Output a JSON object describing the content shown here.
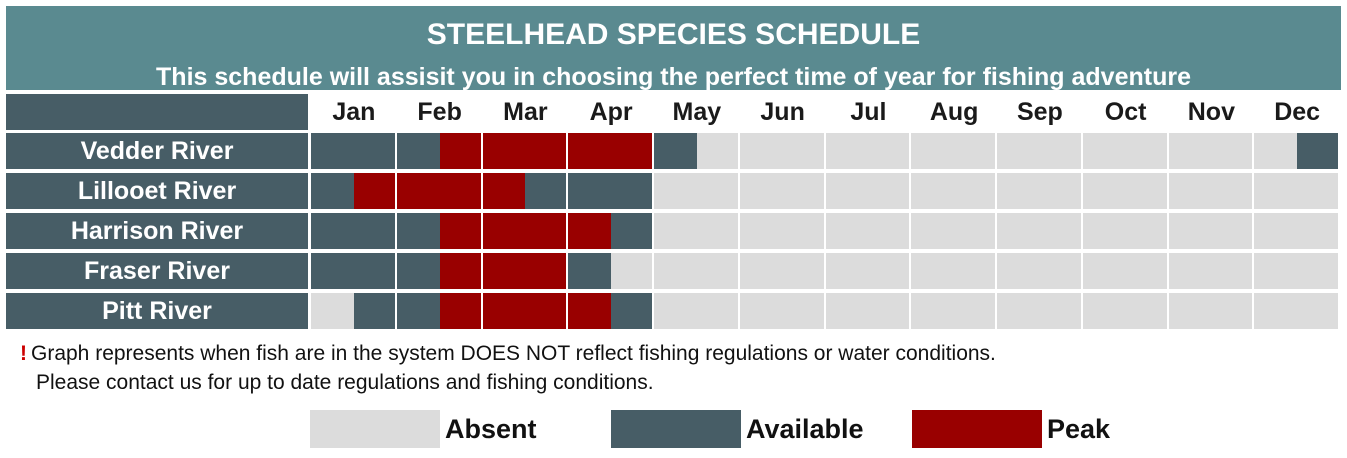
{
  "title": "STEELHEAD SPECIES SCHEDULE",
  "subtitle": "This schedule will assisit you in choosing the perfect time of year for fishing adventure",
  "footnote": {
    "mark": "!",
    "line1": "Graph represents when fish are in the system DOES NOT reflect fishing regulations or water conditions.",
    "line2": "Please contact us for up to date regulations and fishing conditions."
  },
  "colors": {
    "absent": "#dcdcdc",
    "available": "#475d66",
    "peak": "#990000",
    "header": "#5a8a90"
  },
  "legend": [
    {
      "key": "absent",
      "label": "Absent"
    },
    {
      "key": "available",
      "label": "Available"
    },
    {
      "key": "peak",
      "label": "Peak"
    }
  ],
  "chart_data": {
    "type": "table",
    "columns": [
      "Jan",
      "Feb",
      "Mar",
      "Apr",
      "May",
      "Jun",
      "Jul",
      "Aug",
      "Sep",
      "Oct",
      "Nov",
      "Dec"
    ],
    "halves_per_month": 2,
    "rows": [
      {
        "name": "Vedder River",
        "status": [
          "available",
          "available",
          "available",
          "peak",
          "peak",
          "peak",
          "peak",
          "peak",
          "available",
          "absent",
          "absent",
          "absent",
          "absent",
          "absent",
          "absent",
          "absent",
          "absent",
          "absent",
          "absent",
          "absent",
          "absent",
          "absent",
          "absent",
          "available"
        ]
      },
      {
        "name": "Lillooet River",
        "status": [
          "available",
          "peak",
          "peak",
          "peak",
          "peak",
          "available",
          "available",
          "available",
          "absent",
          "absent",
          "absent",
          "absent",
          "absent",
          "absent",
          "absent",
          "absent",
          "absent",
          "absent",
          "absent",
          "absent",
          "absent",
          "absent",
          "absent",
          "absent"
        ]
      },
      {
        "name": "Harrison River",
        "status": [
          "available",
          "available",
          "available",
          "peak",
          "peak",
          "peak",
          "peak",
          "available",
          "absent",
          "absent",
          "absent",
          "absent",
          "absent",
          "absent",
          "absent",
          "absent",
          "absent",
          "absent",
          "absent",
          "absent",
          "absent",
          "absent",
          "absent",
          "absent"
        ]
      },
      {
        "name": "Fraser River",
        "status": [
          "available",
          "available",
          "available",
          "peak",
          "peak",
          "peak",
          "available",
          "absent",
          "absent",
          "absent",
          "absent",
          "absent",
          "absent",
          "absent",
          "absent",
          "absent",
          "absent",
          "absent",
          "absent",
          "absent",
          "absent",
          "absent",
          "absent",
          "absent"
        ]
      },
      {
        "name": "Pitt River",
        "status": [
          "absent",
          "available",
          "available",
          "peak",
          "peak",
          "peak",
          "peak",
          "available",
          "absent",
          "absent",
          "absent",
          "absent",
          "absent",
          "absent",
          "absent",
          "absent",
          "absent",
          "absent",
          "absent",
          "absent",
          "absent",
          "absent",
          "absent",
          "absent"
        ]
      }
    ]
  }
}
